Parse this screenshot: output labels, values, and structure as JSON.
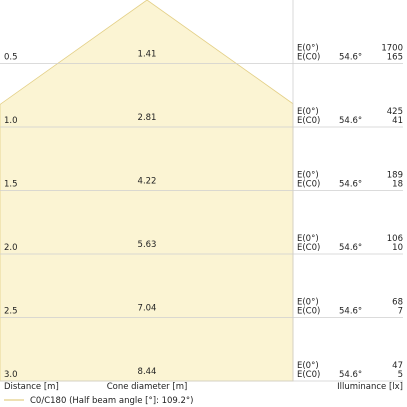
{
  "chart_data": {
    "type": "table",
    "xlabel": "Distance [m]",
    "center_label": "Cone diameter [m]",
    "ylabel": "Illuminance [lx]",
    "legend": "C0/C180 (Half beam angle [°]: 109.2°)",
    "angle_label": "54.6°",
    "e0_label": "E(0°)",
    "ec0_label": "E(C0)",
    "colors": {
      "fill": "#fbf4d3",
      "edge": "#e3cf86",
      "grid": "#cfcfcf",
      "text": "#222222"
    },
    "rows": [
      {
        "distance": "0.5",
        "diameter": "1.41",
        "e0": "1700",
        "ec0": "165"
      },
      {
        "distance": "1.0",
        "diameter": "2.81",
        "e0": "425",
        "ec0": "41"
      },
      {
        "distance": "1.5",
        "diameter": "4.22",
        "e0": "189",
        "ec0": "18"
      },
      {
        "distance": "2.0",
        "diameter": "5.63",
        "e0": "106",
        "ec0": "10"
      },
      {
        "distance": "2.5",
        "diameter": "7.04",
        "e0": "68",
        "ec0": "7"
      },
      {
        "distance": "3.0",
        "diameter": "8.44",
        "e0": "47",
        "ec0": "5"
      }
    ]
  }
}
